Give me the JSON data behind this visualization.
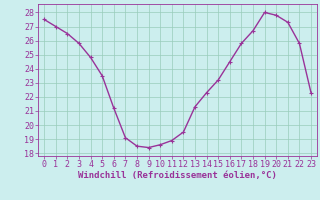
{
  "x": [
    0,
    1,
    2,
    3,
    4,
    5,
    6,
    7,
    8,
    9,
    10,
    11,
    12,
    13,
    14,
    15,
    16,
    17,
    18,
    19,
    20,
    21,
    22,
    23
  ],
  "y": [
    27.5,
    27.0,
    26.5,
    25.8,
    24.8,
    23.5,
    21.2,
    19.1,
    18.5,
    18.4,
    18.6,
    18.9,
    19.5,
    21.3,
    22.3,
    23.2,
    24.5,
    25.8,
    26.7,
    28.0,
    27.8,
    27.3,
    25.8,
    22.3
  ],
  "line_color": "#993399",
  "marker": "+",
  "bg_color": "#cceeee",
  "grid_color": "#99ccbb",
  "xlabel": "Windchill (Refroidissement éolien,°C)",
  "xlim": [
    -0.5,
    23.5
  ],
  "ylim": [
    17.8,
    28.6
  ],
  "yticks": [
    18,
    19,
    20,
    21,
    22,
    23,
    24,
    25,
    26,
    27,
    28
  ],
  "xticks": [
    0,
    1,
    2,
    3,
    4,
    5,
    6,
    7,
    8,
    9,
    10,
    11,
    12,
    13,
    14,
    15,
    16,
    17,
    18,
    19,
    20,
    21,
    22,
    23
  ],
  "xlabel_fontsize": 6.5,
  "tick_fontsize": 6,
  "line_width": 1.0,
  "marker_size": 3.5
}
